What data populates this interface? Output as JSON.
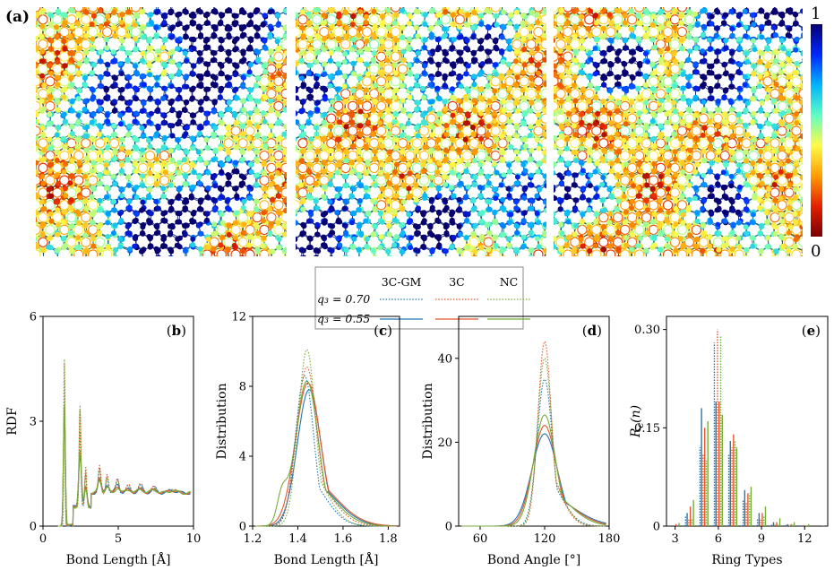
{
  "panel_a": {
    "label": "(a)",
    "panels": [
      {
        "name": "3C-GM"
      },
      {
        "name": "3C"
      },
      {
        "name": "NC"
      }
    ],
    "colorbar": {
      "max_label": "1",
      "min_label": "0",
      "colors": [
        "#08006f",
        "#0026ff",
        "#00b5ff",
        "#5fffc3",
        "#fffa48",
        "#ff9c00",
        "#e41f00",
        "#7a0000"
      ]
    }
  },
  "legend": {
    "headers": [
      "3C-GM",
      "3C",
      "NC"
    ],
    "rows": [
      {
        "label": "q₃ = 0.70",
        "style": "dotted"
      },
      {
        "label": "q₃ = 0.55",
        "style": "solid"
      }
    ],
    "colors": {
      "3C-GM": "#1f77b4",
      "3C": "#e4572e",
      "NC": "#76ad3b"
    }
  },
  "chart_data": [
    {
      "id": "b",
      "type": "line",
      "label": "(b)",
      "xlabel": "Bond Length [Å]",
      "ylabel": "RDF",
      "xlim": [
        0,
        10
      ],
      "ylim": [
        0,
        6
      ],
      "xticks": [
        "0",
        "5",
        "10"
      ],
      "yticks": [
        "0",
        "3",
        "6"
      ],
      "peaks": [
        {
          "x": 1.42,
          "width": 0.09,
          "heights": {
            "3C-GM": 3.6,
            "3C": 3.8,
            "NC": 3.9
          }
        },
        {
          "x": 2.46,
          "width": 0.13,
          "heights": {
            "3C-GM": 1.9,
            "3C": 2.0,
            "NC": 1.95
          }
        },
        {
          "x": 2.84,
          "width": 0.13,
          "heights": {
            "3C-GM": 0.9,
            "3C": 0.95,
            "NC": 0.9
          }
        },
        {
          "x": 3.76,
          "width": 0.16,
          "heights": {
            "3C-GM": 1.3,
            "3C": 1.35,
            "NC": 1.3
          }
        },
        {
          "x": 4.26,
          "width": 0.17,
          "heights": {
            "3C-GM": 1.2,
            "3C": 1.15,
            "NC": 1.1
          }
        },
        {
          "x": 4.95,
          "width": 0.2,
          "heights": {
            "3C-GM": 1.2,
            "3C": 1.15,
            "NC": 1.1
          }
        },
        {
          "x": 5.7,
          "width": 0.25,
          "heights": {
            "3C-GM": 1.05,
            "3C": 1.05,
            "NC": 1.05
          }
        },
        {
          "x": 6.5,
          "width": 0.28,
          "heights": {
            "3C-GM": 1.05,
            "3C": 1.05,
            "NC": 1.05
          }
        },
        {
          "x": 7.4,
          "width": 0.3,
          "heights": {
            "3C-GM": 1.03,
            "3C": 1.03,
            "NC": 1.03
          }
        },
        {
          "x": 8.6,
          "width": 0.35,
          "heights": {
            "3C-GM": 1.02,
            "3C": 1.02,
            "NC": 1.02
          }
        }
      ],
      "dotted_peaks": [
        {
          "x": 1.42,
          "width": 0.06,
          "heights": {
            "3C-GM": 4.6,
            "3C": 5.1,
            "NC": 5.2
          }
        },
        {
          "x": 2.46,
          "width": 0.09,
          "heights": {
            "3C-GM": 2.6,
            "3C": 3.2,
            "NC": 3.3
          }
        },
        {
          "x": 2.84,
          "width": 0.09,
          "heights": {
            "3C-GM": 1.3,
            "3C": 1.5,
            "NC": 1.4
          }
        },
        {
          "x": 3.76,
          "width": 0.12,
          "heights": {
            "3C-GM": 1.6,
            "3C": 1.7,
            "NC": 1.6
          }
        },
        {
          "x": 4.26,
          "width": 0.12,
          "heights": {
            "3C-GM": 1.4,
            "3C": 1.5,
            "NC": 1.4
          }
        },
        {
          "x": 4.95,
          "width": 0.15,
          "heights": {
            "3C-GM": 1.35,
            "3C": 1.4,
            "NC": 1.35
          }
        },
        {
          "x": 5.7,
          "width": 0.2,
          "heights": {
            "3C-GM": 1.15,
            "3C": 1.2,
            "NC": 1.15
          }
        },
        {
          "x": 6.5,
          "width": 0.22,
          "heights": {
            "3C-GM": 1.15,
            "3C": 1.2,
            "NC": 1.15
          }
        },
        {
          "x": 7.4,
          "width": 0.25,
          "heights": {
            "3C-GM": 1.1,
            "3C": 1.12,
            "NC": 1.1
          }
        },
        {
          "x": 8.6,
          "width": 0.3,
          "heights": {
            "3C-GM": 1.06,
            "3C": 1.08,
            "NC": 1.06
          }
        }
      ]
    },
    {
      "id": "c",
      "type": "line",
      "label": "(c)",
      "xlabel": "Bond Length [Å]",
      "ylabel": "Distribution",
      "xlim": [
        1.2,
        1.85
      ],
      "ylim": [
        0,
        12
      ],
      "xticks": [
        "1.2",
        "1.4",
        "1.6",
        "1.8"
      ],
      "yticks": [
        "0",
        "4",
        "8",
        "12"
      ],
      "series": [
        {
          "name": "3C-GM",
          "style": "solid",
          "mu": 1.45,
          "sigma": 0.052,
          "peak": 7.8
        },
        {
          "name": "3C",
          "style": "solid",
          "mu": 1.445,
          "sigma": 0.055,
          "peak": 8.2
        },
        {
          "name": "NC",
          "style": "solid",
          "mu": 1.44,
          "sigma": 0.05,
          "peak": 8.3,
          "shoulder": {
            "mu": 1.33,
            "sigma": 0.022,
            "peak": 1.6
          }
        },
        {
          "name": "3C-GM",
          "style": "dotted",
          "mu": 1.43,
          "sigma": 0.04,
          "peak": 8.6
        },
        {
          "name": "3C",
          "style": "dotted",
          "mu": 1.44,
          "sigma": 0.045,
          "peak": 9.1
        },
        {
          "name": "NC",
          "style": "dotted",
          "mu": 1.44,
          "sigma": 0.038,
          "peak": 10.1
        }
      ]
    },
    {
      "id": "d",
      "type": "line",
      "label": "(d)",
      "xlabel": "Bond Angle [°]",
      "ylabel": "Distribution",
      "xlim": [
        40,
        180
      ],
      "ylim": [
        0,
        50
      ],
      "xticks": [
        "60",
        "120",
        "180"
      ],
      "yticks": [
        "0",
        "20",
        "40"
      ],
      "series": [
        {
          "name": "3C-GM",
          "style": "solid",
          "mu": 120,
          "sigma": 12,
          "peak": 22
        },
        {
          "name": "3C",
          "style": "solid",
          "mu": 120,
          "sigma": 11,
          "peak": 24
        },
        {
          "name": "NC",
          "style": "solid",
          "mu": 120,
          "sigma": 10,
          "peak": 26.5
        },
        {
          "name": "3C-GM",
          "style": "dotted",
          "mu": 120,
          "sigma": 7,
          "peak": 35
        },
        {
          "name": "3C",
          "style": "dotted",
          "mu": 120,
          "sigma": 6.2,
          "peak": 44
        },
        {
          "name": "NC",
          "style": "dotted",
          "mu": 120,
          "sigma": 6.6,
          "peak": 40
        }
      ]
    },
    {
      "id": "e",
      "type": "bar",
      "label": "(e)",
      "xlabel": "Ring Types",
      "ylabel": "R_c(n)",
      "xlim": [
        2.4,
        13.6
      ],
      "ylim": [
        0,
        0.32
      ],
      "xticks": [
        "3",
        "6",
        "9",
        "12"
      ],
      "yticks": [
        "0",
        "0.15",
        "0.30"
      ],
      "categories": [
        3,
        4,
        5,
        6,
        7,
        8,
        9,
        10,
        11,
        12,
        13
      ],
      "series": [
        {
          "name": "3C-GM",
          "style": "dotted",
          "values": [
            0.0,
            0.015,
            0.12,
            0.28,
            0.11,
            0.04,
            0.012,
            0.004,
            0.002,
            0.001,
            0.0
          ]
        },
        {
          "name": "3C-GM",
          "style": "solid",
          "values": [
            0.0,
            0.02,
            0.18,
            0.19,
            0.13,
            0.055,
            0.02,
            0.006,
            0.003,
            0.001,
            0.0
          ]
        },
        {
          "name": "3C",
          "style": "dotted",
          "values": [
            0.0,
            0.01,
            0.11,
            0.3,
            0.12,
            0.035,
            0.01,
            0.003,
            0.001,
            0.0,
            0.0
          ]
        },
        {
          "name": "3C",
          "style": "solid",
          "values": [
            0.003,
            0.03,
            0.15,
            0.19,
            0.14,
            0.05,
            0.02,
            0.006,
            0.003,
            0.001,
            0.0
          ]
        },
        {
          "name": "NC",
          "style": "dotted",
          "values": [
            0.0,
            0.012,
            0.1,
            0.29,
            0.13,
            0.05,
            0.015,
            0.004,
            0.002,
            0.001,
            0.0
          ]
        },
        {
          "name": "NC",
          "style": "solid",
          "values": [
            0.005,
            0.04,
            0.16,
            0.17,
            0.12,
            0.06,
            0.03,
            0.012,
            0.006,
            0.003,
            0.001
          ]
        }
      ]
    }
  ]
}
